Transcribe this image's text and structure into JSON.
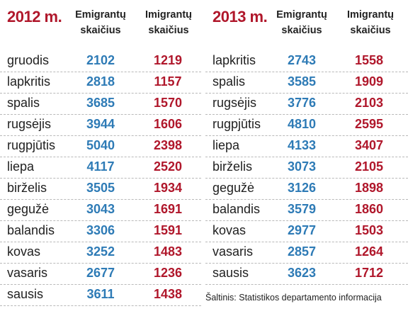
{
  "chart_data": [
    {
      "type": "table",
      "title": "2012 m.",
      "columns": [
        "",
        "Emigrantų skaičius",
        "Imigrantų skaičius"
      ],
      "rows": [
        {
          "month": "gruodis",
          "emigrants": 2102,
          "immigrants": 1219
        },
        {
          "month": "lapkritis",
          "emigrants": 2818,
          "immigrants": 1157
        },
        {
          "month": "spalis",
          "emigrants": 3685,
          "immigrants": 1570
        },
        {
          "month": "rugsėjis",
          "emigrants": 3944,
          "immigrants": 1606
        },
        {
          "month": "rugpjūtis",
          "emigrants": 5040,
          "immigrants": 2398
        },
        {
          "month": "liepa",
          "emigrants": 4117,
          "immigrants": 2520
        },
        {
          "month": "birželis",
          "emigrants": 3505,
          "immigrants": 1934
        },
        {
          "month": "gegužė",
          "emigrants": 3043,
          "immigrants": 1691
        },
        {
          "month": "balandis",
          "emigrants": 3306,
          "immigrants": 1591
        },
        {
          "month": "kovas",
          "emigrants": 3252,
          "immigrants": 1483
        },
        {
          "month": "vasaris",
          "emigrants": 2677,
          "immigrants": 1236
        },
        {
          "month": "sausis",
          "emigrants": 3611,
          "immigrants": 1438
        }
      ]
    },
    {
      "type": "table",
      "title": "2013 m.",
      "columns": [
        "",
        "Emigrantų skaičius",
        "Imigrantų skaičius"
      ],
      "rows": [
        {
          "month": "lapkritis",
          "emigrants": 2743,
          "immigrants": 1558
        },
        {
          "month": "spalis",
          "emigrants": 3585,
          "immigrants": 1909
        },
        {
          "month": "rugsėjis",
          "emigrants": 3776,
          "immigrants": 2103
        },
        {
          "month": "rugpjūtis",
          "emigrants": 4810,
          "immigrants": 2595
        },
        {
          "month": "liepa",
          "emigrants": 4133,
          "immigrants": 3407
        },
        {
          "month": "birželis",
          "emigrants": 3073,
          "immigrants": 2105
        },
        {
          "month": "gegužė",
          "emigrants": 3126,
          "immigrants": 1898
        },
        {
          "month": "balandis",
          "emigrants": 3579,
          "immigrants": 1860
        },
        {
          "month": "kovas",
          "emigrants": 2977,
          "immigrants": 1503
        },
        {
          "month": "vasaris",
          "emigrants": 2857,
          "immigrants": 1264
        },
        {
          "month": "sausis",
          "emigrants": 3623,
          "immigrants": 1712
        }
      ]
    }
  ],
  "labels": {
    "emigrants_line1": "Emigrantų",
    "emigrants_line2": "skaičius",
    "immigrants_line1": "Imigrantų",
    "immigrants_line2": "skaičius"
  },
  "source": "Šaltinis: Statistikos departamento informacija",
  "colors": {
    "year_title": "#b0172b",
    "emigrants": "#2e7bb6",
    "immigrants": "#b0172b",
    "divider": "#b9b9b9"
  }
}
